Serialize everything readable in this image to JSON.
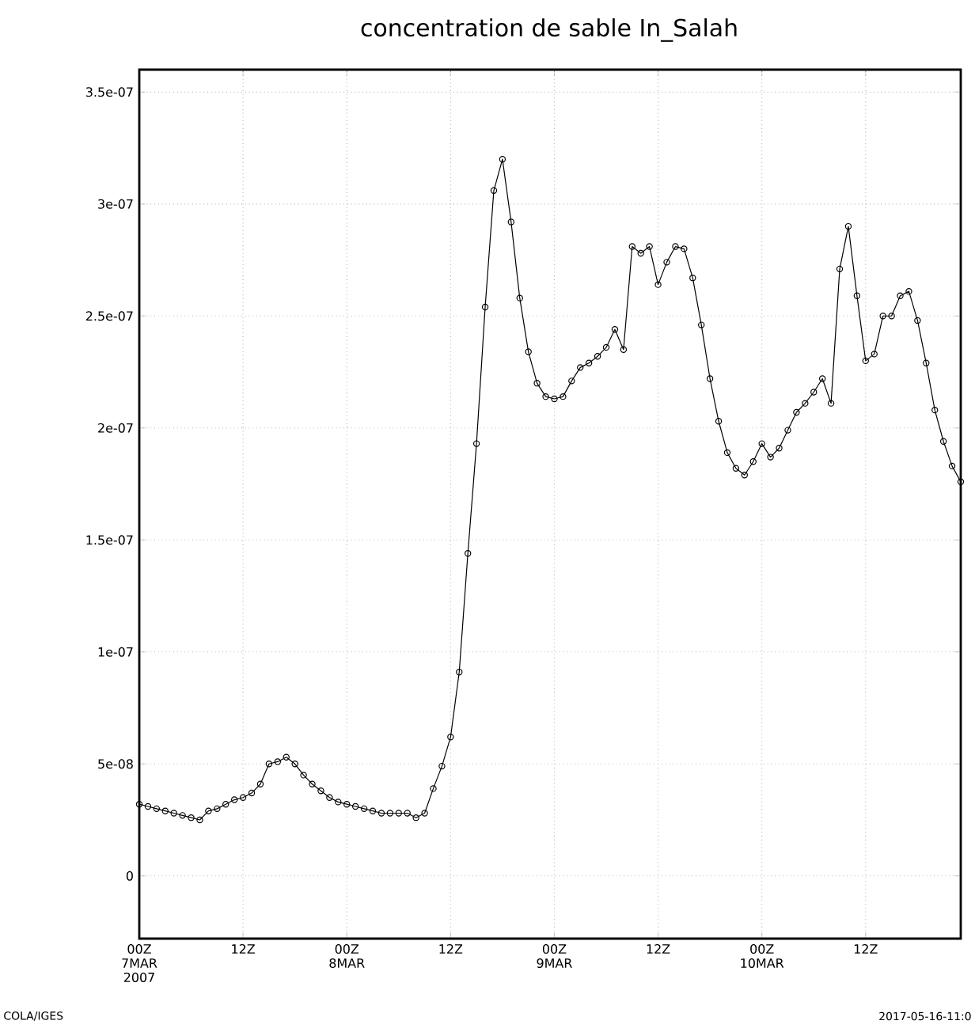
{
  "chart_data": {
    "type": "line",
    "title": "concentration de sable In_Salah",
    "x": [
      "2007-03-07T00:00",
      "2007-03-07T01:00",
      "2007-03-07T02:00",
      "2007-03-07T03:00",
      "2007-03-07T04:00",
      "2007-03-07T05:00",
      "2007-03-07T06:00",
      "2007-03-07T07:00",
      "2007-03-07T08:00",
      "2007-03-07T09:00",
      "2007-03-07T10:00",
      "2007-03-07T11:00",
      "2007-03-07T12:00",
      "2007-03-07T13:00",
      "2007-03-07T14:00",
      "2007-03-07T15:00",
      "2007-03-07T16:00",
      "2007-03-07T17:00",
      "2007-03-07T18:00",
      "2007-03-07T19:00",
      "2007-03-07T20:00",
      "2007-03-07T21:00",
      "2007-03-07T22:00",
      "2007-03-07T23:00",
      "2007-03-08T00:00",
      "2007-03-08T01:00",
      "2007-03-08T02:00",
      "2007-03-08T03:00",
      "2007-03-08T04:00",
      "2007-03-08T05:00",
      "2007-03-08T06:00",
      "2007-03-08T07:00",
      "2007-03-08T08:00",
      "2007-03-08T09:00",
      "2007-03-08T10:00",
      "2007-03-08T11:00",
      "2007-03-08T12:00",
      "2007-03-08T13:00",
      "2007-03-08T14:00",
      "2007-03-08T15:00",
      "2007-03-08T16:00",
      "2007-03-08T17:00",
      "2007-03-08T18:00",
      "2007-03-08T19:00",
      "2007-03-08T20:00",
      "2007-03-08T21:00",
      "2007-03-08T22:00",
      "2007-03-08T23:00",
      "2007-03-09T00:00",
      "2007-03-09T01:00",
      "2007-03-09T02:00",
      "2007-03-09T03:00",
      "2007-03-09T04:00",
      "2007-03-09T05:00",
      "2007-03-09T06:00",
      "2007-03-09T07:00",
      "2007-03-09T08:00",
      "2007-03-09T09:00",
      "2007-03-09T10:00",
      "2007-03-09T11:00",
      "2007-03-09T12:00",
      "2007-03-09T13:00",
      "2007-03-09T14:00",
      "2007-03-09T15:00",
      "2007-03-09T16:00",
      "2007-03-09T17:00",
      "2007-03-09T18:00",
      "2007-03-09T19:00",
      "2007-03-09T20:00",
      "2007-03-09T21:00",
      "2007-03-09T22:00",
      "2007-03-09T23:00",
      "2007-03-10T00:00",
      "2007-03-10T01:00",
      "2007-03-10T02:00",
      "2007-03-10T03:00",
      "2007-03-10T04:00",
      "2007-03-10T05:00",
      "2007-03-10T06:00",
      "2007-03-10T07:00",
      "2007-03-10T08:00",
      "2007-03-10T09:00",
      "2007-03-10T10:00",
      "2007-03-10T11:00",
      "2007-03-10T12:00",
      "2007-03-10T13:00",
      "2007-03-10T14:00",
      "2007-03-10T15:00",
      "2007-03-10T16:00",
      "2007-03-10T17:00",
      "2007-03-10T18:00",
      "2007-03-10T19:00",
      "2007-03-10T20:00",
      "2007-03-10T21:00",
      "2007-03-10T22:00",
      "2007-03-10T23:00"
    ],
    "series": [
      {
        "color": "#000000",
        "values": [
          3.2e-08,
          3.1e-08,
          3e-08,
          2.9e-08,
          2.8e-08,
          2.7e-08,
          2.6e-08,
          2.5e-08,
          2.9e-08,
          3e-08,
          3.2e-08,
          3.4e-08,
          3.5e-08,
          3.7e-08,
          4.1e-08,
          5e-08,
          5.1e-08,
          5.3e-08,
          5e-08,
          4.5e-08,
          4.1e-08,
          3.8e-08,
          3.5e-08,
          3.3e-08,
          3.2e-08,
          3.1e-08,
          3e-08,
          2.9e-08,
          2.8e-08,
          2.8e-08,
          2.8e-08,
          2.8e-08,
          2.6e-08,
          2.8e-08,
          3.9e-08,
          4.9e-08,
          6.2e-08,
          9.1e-08,
          1.44e-07,
          1.93e-07,
          2.54e-07,
          3.06e-07,
          3.2e-07,
          2.92e-07,
          2.58e-07,
          2.34e-07,
          2.2e-07,
          2.14e-07,
          2.13e-07,
          2.14e-07,
          2.21e-07,
          2.27e-07,
          2.29e-07,
          2.32e-07,
          2.36e-07,
          2.44e-07,
          2.35e-07,
          2.81e-07,
          2.78e-07,
          2.81e-07,
          2.64e-07,
          2.74e-07,
          2.81e-07,
          2.8e-07,
          2.67e-07,
          2.46e-07,
          2.22e-07,
          2.03e-07,
          1.89e-07,
          1.82e-07,
          1.79e-07,
          1.85e-07,
          1.93e-07,
          1.87e-07,
          1.91e-07,
          1.99e-07,
          2.07e-07,
          2.11e-07,
          2.16e-07,
          2.22e-07,
          2.11e-07,
          2.71e-07,
          2.9e-07,
          2.59e-07,
          2.3e-07,
          2.33e-07,
          2.5e-07,
          2.5e-07,
          2.59e-07,
          2.61e-07,
          2.48e-07,
          2.29e-07,
          2.08e-07,
          1.94e-07,
          1.83e-07,
          1.76e-07
        ]
      }
    ],
    "xlim": [
      "2007-03-07T00:00",
      "2007-03-10T23:00"
    ],
    "xticks": [
      {
        "value": "2007-03-07T00:00",
        "label": "00Z 7MAR 2007"
      },
      {
        "value": "2007-03-07T12:00",
        "label": "12Z"
      },
      {
        "value": "2007-03-08T00:00",
        "label": "00Z 8MAR"
      },
      {
        "value": "2007-03-08T12:00",
        "label": "12Z"
      },
      {
        "value": "2007-03-09T00:00",
        "label": "00Z 9MAR"
      },
      {
        "value": "2007-03-09T12:00",
        "label": "12Z"
      },
      {
        "value": "2007-03-10T00:00",
        "label": "00Z 10MAR"
      },
      {
        "value": "2007-03-10T12:00",
        "label": "12Z"
      }
    ],
    "ylim": [
      -2.8e-08,
      3.6e-07
    ],
    "yticks": [
      0,
      {
        "value": 5e-08,
        "label": "5e-08"
      },
      {
        "value": 1e-07,
        "label": "1e-07"
      },
      {
        "value": 1.5e-07,
        "label": "1.5e-07"
      },
      {
        "value": 2e-07,
        "label": "2e-07"
      },
      {
        "value": 2.5e-07,
        "label": "2.5e-07"
      },
      {
        "value": 3e-07,
        "label": "3e-07"
      },
      {
        "value": 3.5e-07,
        "label": "3.5e-07"
      }
    ],
    "grid": true,
    "marker": "circle",
    "line_style": "solid",
    "annotations": [
      "COLA/IGES",
      "2017-05-16-11:0"
    ]
  }
}
